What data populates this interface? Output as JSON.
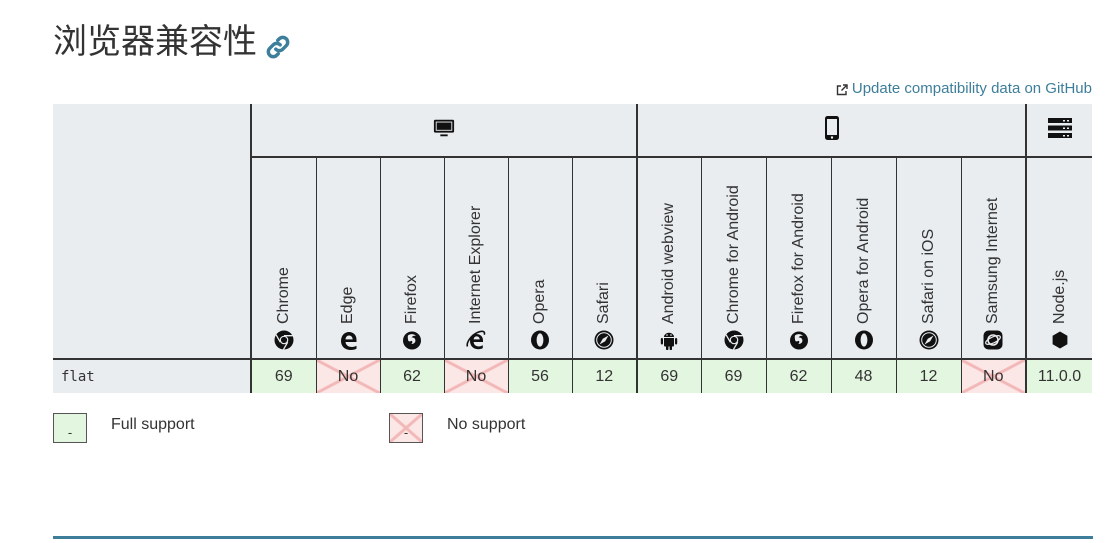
{
  "heading": {
    "text": "浏览器兼容性"
  },
  "update_link": {
    "label": "Update compatibility data on GitHub"
  },
  "platforms": [
    {
      "icon": "desktop-icon",
      "span": 6
    },
    {
      "icon": "mobile-icon",
      "span": 6
    },
    {
      "icon": "server-icon",
      "span": 1
    }
  ],
  "browsers": [
    {
      "name": "Chrome",
      "icon": "chrome-icon"
    },
    {
      "name": "Edge",
      "icon": "edge-icon"
    },
    {
      "name": "Firefox",
      "icon": "firefox-icon"
    },
    {
      "name": "Internet Explorer",
      "icon": "ie-icon"
    },
    {
      "name": "Opera",
      "icon": "opera-icon"
    },
    {
      "name": "Safari",
      "icon": "safari-icon"
    },
    {
      "name": "Android webview",
      "icon": "android-icon"
    },
    {
      "name": "Chrome for Android",
      "icon": "chrome-icon"
    },
    {
      "name": "Firefox for Android",
      "icon": "firefox-icon"
    },
    {
      "name": "Opera for Android",
      "icon": "opera-icon"
    },
    {
      "name": "Safari on iOS",
      "icon": "safari-icon"
    },
    {
      "name": "Samsung Internet",
      "icon": "samsung-icon"
    },
    {
      "name": "Node.js",
      "icon": "nodejs-icon"
    }
  ],
  "feature": {
    "name": "flat",
    "support": [
      {
        "value": "69",
        "status": "yes"
      },
      {
        "value": "No",
        "status": "no"
      },
      {
        "value": "62",
        "status": "yes"
      },
      {
        "value": "No",
        "status": "no"
      },
      {
        "value": "56",
        "status": "yes"
      },
      {
        "value": "12",
        "status": "yes"
      },
      {
        "value": "69",
        "status": "yes"
      },
      {
        "value": "69",
        "status": "yes"
      },
      {
        "value": "62",
        "status": "yes"
      },
      {
        "value": "48",
        "status": "yes"
      },
      {
        "value": "12",
        "status": "yes"
      },
      {
        "value": "No",
        "status": "no"
      },
      {
        "value": "11.0.0",
        "status": "yes"
      }
    ]
  },
  "legend": {
    "full": {
      "swatch": "-",
      "label": "Full support"
    },
    "none": {
      "swatch": "-",
      "label": "No support"
    }
  },
  "colors": {
    "link": "#3d7e9a",
    "header_bg": "#e9edf0",
    "yes_bg": "#e3f7e0",
    "no_bg": "#fce7e7"
  }
}
